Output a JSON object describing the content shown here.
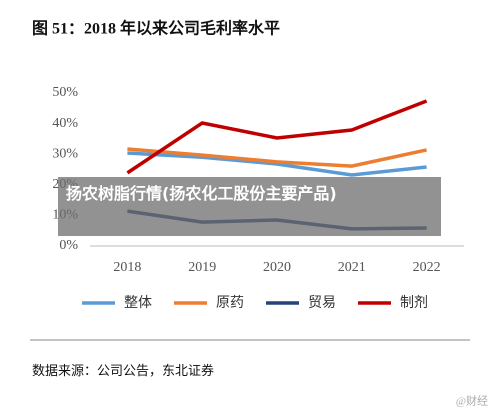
{
  "chart_data": {
    "type": "line",
    "title": "图 51：2018 年以来公司毛利率水平",
    "categories": [
      "2018",
      "2019",
      "2020",
      "2021",
      "2022"
    ],
    "series": [
      {
        "name": "整体",
        "color": "#5b9bd5",
        "values": [
          30.4,
          29.0,
          26.8,
          23.2,
          25.8
        ]
      },
      {
        "name": "原药",
        "color": "#ed7d31",
        "values": [
          31.7,
          29.7,
          27.5,
          26.1,
          31.4
        ]
      },
      {
        "name": "贸易",
        "color": "#264478",
        "values": [
          11.4,
          7.8,
          8.5,
          5.6,
          5.9
        ]
      },
      {
        "name": "制剂",
        "color": "#c00000",
        "values": [
          23.9,
          40.2,
          35.3,
          37.9,
          47.4
        ]
      }
    ],
    "ylim": [
      0,
      50
    ],
    "yticks": [
      {
        "value": 0,
        "label": "0%"
      },
      {
        "value": 10,
        "label": "10%"
      },
      {
        "value": 20,
        "label": "20%"
      },
      {
        "value": 30,
        "label": "30%"
      },
      {
        "value": 40,
        "label": "40%"
      },
      {
        "value": 50,
        "label": "50%"
      }
    ],
    "legend": "bottom",
    "source": "数据来源：公司公告，东北证券",
    "banner": "扬农树脂行情(扬农化工股份主要产品)",
    "watermark": "@财经"
  }
}
